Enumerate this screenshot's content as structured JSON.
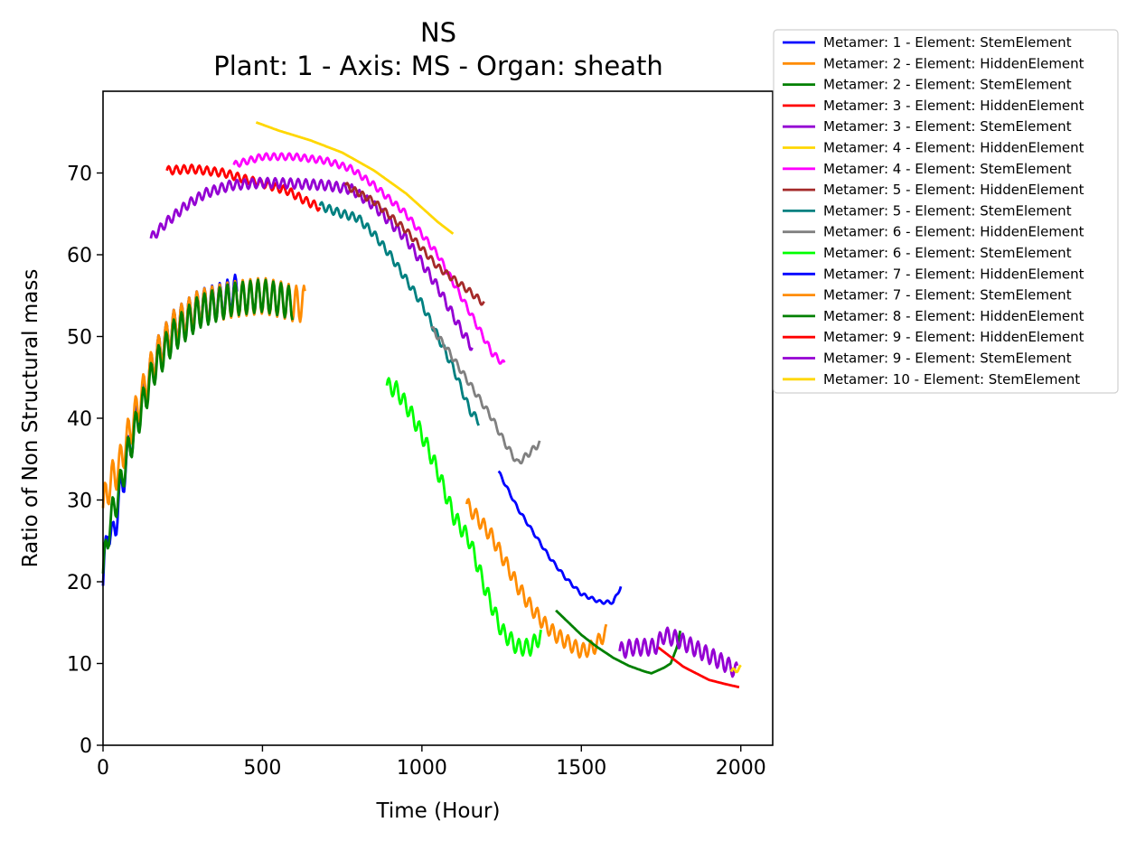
{
  "chart_data": {
    "type": "line",
    "title": "NS",
    "subtitle": "Plant: 1 - Axis: MS - Organ: sheath",
    "xlabel": "Time (Hour)",
    "ylabel": "Ratio of Non Structural mass",
    "xlim": [
      0,
      2100
    ],
    "ylim": [
      0,
      80
    ],
    "xticks": [
      0,
      500,
      1000,
      1500,
      2000
    ],
    "yticks": [
      0,
      10,
      20,
      30,
      40,
      50,
      60,
      70
    ],
    "grid": false,
    "legend_position": "outside-top-right",
    "series": [
      {
        "name": "Metamer: 1 - Element: StemElement",
        "color": "#0000ff",
        "wave": 2.2,
        "x": [
          0,
          15,
          30,
          50,
          80,
          120,
          160,
          220,
          300,
          380,
          420
        ],
        "y": [
          19.5,
          27,
          25,
          30,
          36,
          42,
          47,
          51,
          53.5,
          54.5,
          55.5
        ]
      },
      {
        "name": "Metamer: 2 - Element: HiddenElement",
        "color": "#ff8c00",
        "wave": 2.2,
        "x": [
          0,
          20,
          50,
          80,
          120,
          160,
          220,
          300,
          400,
          500,
          560,
          600,
          635
        ],
        "y": [
          29,
          32,
          34,
          38,
          42.5,
          47,
          51,
          53.5,
          54.5,
          55,
          54.5,
          54,
          54
        ]
      },
      {
        "name": "Metamer: 2 - Element: StemElement",
        "color": "#008000",
        "wave": 2.0,
        "x": [
          0,
          20,
          50,
          80,
          120,
          160,
          220,
          300,
          400,
          500,
          560,
          595
        ],
        "y": [
          21,
          27,
          31,
          36,
          41,
          46,
          50,
          53,
          54.5,
          55,
          54.5,
          54
        ]
      },
      {
        "name": "Metamer: 3 - Element: HiddenElement",
        "color": "#ff0000",
        "wave": 0.5,
        "x": [
          200,
          280,
          380,
          450,
          520,
          580,
          640,
          680
        ],
        "y": [
          70.3,
          70.5,
          70,
          69.2,
          68.5,
          67.8,
          66.5,
          65.8
        ]
      },
      {
        "name": "Metamer: 3 - Element: StemElement",
        "color": "#9400d3",
        "wave": 0.6,
        "x": [
          150,
          200,
          260,
          320,
          400,
          500,
          600,
          700,
          780,
          850,
          950,
          1050,
          1120,
          1160
        ],
        "y": [
          62,
          64,
          66,
          67.5,
          68.5,
          68.8,
          68.7,
          68.5,
          68,
          66,
          62,
          56,
          51,
          48.5
        ]
      },
      {
        "name": "Metamer: 4 - Element: HiddenElement",
        "color": "#ffd700",
        "wave": 0,
        "x": [
          480,
          550,
          650,
          750,
          850,
          950,
          1050,
          1100
        ],
        "y": [
          76.2,
          75.2,
          74,
          72.5,
          70.3,
          67.5,
          64,
          62.5
        ]
      },
      {
        "name": "Metamer: 4 - Element: StemElement",
        "color": "#ff00ff",
        "wave": 0.4,
        "x": [
          410,
          500,
          600,
          700,
          780,
          850,
          950,
          1050,
          1150,
          1220,
          1260
        ],
        "y": [
          71,
          72,
          72,
          71.5,
          70.5,
          68.5,
          65,
          60,
          53,
          48,
          46.5
        ]
      },
      {
        "name": "Metamer: 5 - Element: HiddenElement",
        "color": "#a52a2a",
        "wave": 0.4,
        "x": [
          760,
          850,
          950,
          1050,
          1150,
          1195
        ],
        "y": [
          68.5,
          66.5,
          63,
          58.5,
          55.5,
          54
        ]
      },
      {
        "name": "Metamer: 5 - Element: StemElement",
        "color": "#008080",
        "wave": 0.5,
        "x": [
          680,
          750,
          800,
          850,
          900,
          950,
          1000,
          1050,
          1100,
          1150,
          1180
        ],
        "y": [
          66,
          65,
          64.5,
          62.5,
          60,
          57,
          54,
          50,
          46,
          41,
          39.5
        ]
      },
      {
        "name": "Metamer: 6 - Element: HiddenElement",
        "color": "#808080",
        "wave": 0.4,
        "x": [
          1030,
          1070,
          1120,
          1170,
          1220,
          1260,
          1300,
          1330,
          1370
        ],
        "y": [
          51,
          49,
          46,
          43,
          40,
          37,
          34.5,
          35.5,
          37
        ]
      },
      {
        "name": "Metamer: 6 - Element: StemElement",
        "color": "#00ff00",
        "wave": 1.0,
        "x": [
          890,
          920,
          960,
          1000,
          1050,
          1100,
          1150,
          1200,
          1250,
          1300,
          1340,
          1375
        ],
        "y": [
          44,
          43.5,
          41,
          38,
          33.5,
          28,
          25,
          19,
          14,
          12,
          12,
          13.5
        ]
      },
      {
        "name": "Metamer: 7 - Element: HiddenElement",
        "color": "#0000ff",
        "wave": 0.2,
        "x": [
          1240,
          1300,
          1350,
          1400,
          1450,
          1500,
          1530,
          1560,
          1600,
          1625
        ],
        "y": [
          33.5,
          29,
          26,
          23,
          20.5,
          18.5,
          18,
          17.5,
          17.5,
          19.5
        ]
      },
      {
        "name": "Metamer: 7 - Element: StemElement",
        "color": "#ff8c00",
        "wave": 0.9,
        "x": [
          1140,
          1180,
          1220,
          1260,
          1300,
          1340,
          1380,
          1420,
          1460,
          1500,
          1540,
          1580
        ],
        "y": [
          29.5,
          27.5,
          25.5,
          22.5,
          19.5,
          17,
          15,
          13.5,
          12.5,
          11.5,
          12,
          14
        ]
      },
      {
        "name": "Metamer: 8 - Element: HiddenElement",
        "color": "#008000",
        "wave": 0,
        "x": [
          1420,
          1460,
          1500,
          1550,
          1600,
          1650,
          1700,
          1720,
          1760,
          1780,
          1800,
          1810
        ],
        "y": [
          16.5,
          15,
          13.5,
          12,
          10.7,
          9.7,
          9,
          8.8,
          9.5,
          10,
          12,
          14
        ]
      },
      {
        "name": "Metamer: 9 - Element: HiddenElement",
        "color": "#ff0000",
        "wave": 0,
        "x": [
          1740,
          1780,
          1820,
          1860,
          1900,
          1950,
          1995
        ],
        "y": [
          12,
          10.8,
          9.6,
          8.8,
          8,
          7.5,
          7.1
        ]
      },
      {
        "name": "Metamer: 9 - Element: StemElement",
        "color": "#9400d3",
        "wave": 1.0,
        "x": [
          1620,
          1660,
          1700,
          1730,
          1760,
          1800,
          1850,
          1900,
          1950,
          1990
        ],
        "y": [
          11.5,
          12,
          12,
          12,
          13.5,
          13,
          12,
          11,
          10,
          9
        ]
      },
      {
        "name": "Metamer: 10 - Element: StemElement",
        "color": "#ffd700",
        "wave": 0.3,
        "x": [
          1970,
          1985,
          2000
        ],
        "y": [
          9,
          9.2,
          9.5
        ]
      }
    ]
  }
}
